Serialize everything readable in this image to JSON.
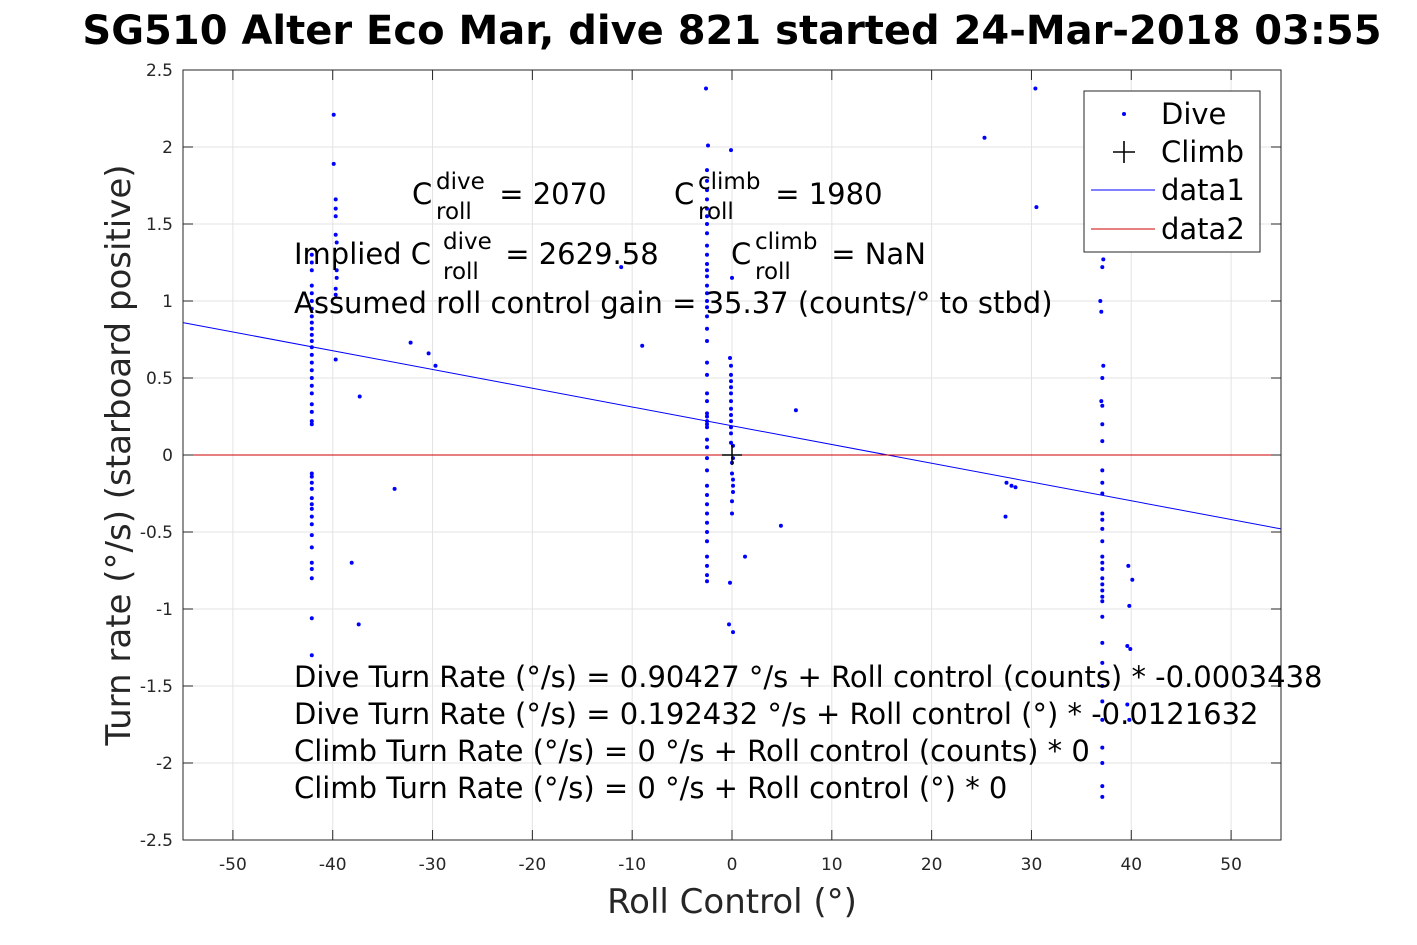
{
  "chart_data": {
    "type": "scatter",
    "title": "SG510 Alter Eco Mar, dive 821 started 24-Mar-2018 03:55",
    "xlabel": "Roll Control (°)",
    "ylabel": "Turn rate (°/s) (starboard positive)",
    "xlim": [
      -55,
      55
    ],
    "ylim": [
      -2.5,
      2.5
    ],
    "xticks": [
      -50,
      -40,
      -30,
      -20,
      -10,
      0,
      10,
      20,
      30,
      40,
      50
    ],
    "yticks": [
      -2.5,
      -2,
      -1.5,
      -1,
      -0.5,
      0,
      0.5,
      1,
      1.5,
      2,
      2.5
    ],
    "xtick_labels": [
      "-50",
      "-40",
      "-30",
      "-20",
      "-10",
      "0",
      "10",
      "20",
      "30",
      "40",
      "50"
    ],
    "ytick_labels": [
      "-2.5",
      "-2",
      "-1.5",
      "-1",
      "-0.5",
      "0",
      "0.5",
      "1",
      "1.5",
      "2",
      "2.5"
    ],
    "grid": true,
    "legend_position": "top-right",
    "colors": {
      "dive": "#0000ff",
      "climb": "#000000",
      "data1": "#0000ff",
      "data2": "#cc0000"
    },
    "series": [
      {
        "name": "Dive",
        "marker": "dot",
        "points": [
          [
            -42.1,
            1.3
          ],
          [
            -42.1,
            1.25
          ],
          [
            -42.1,
            1.2
          ],
          [
            -42.1,
            1.1
          ],
          [
            -42.1,
            1.05
          ],
          [
            -42.1,
            1.0
          ],
          [
            -42.1,
            0.95
          ],
          [
            -42.1,
            0.9
          ],
          [
            -42.1,
            0.86
          ],
          [
            -42.1,
            0.82
          ],
          [
            -42.1,
            0.78
          ],
          [
            -42.1,
            0.74
          ],
          [
            -42.1,
            0.7
          ],
          [
            -42.1,
            0.65
          ],
          [
            -42.1,
            0.6
          ],
          [
            -42.1,
            0.55
          ],
          [
            -42.1,
            0.5
          ],
          [
            -42.1,
            0.45
          ],
          [
            -42.1,
            0.4
          ],
          [
            -42.1,
            0.33
          ],
          [
            -42.1,
            0.28
          ],
          [
            -42.1,
            0.22
          ],
          [
            -42.1,
            0.2
          ],
          [
            -42.1,
            -0.12
          ],
          [
            -42.1,
            -0.14
          ],
          [
            -42.1,
            -0.18
          ],
          [
            -42.1,
            -0.22
          ],
          [
            -42.1,
            -0.28
          ],
          [
            -42.1,
            -0.32
          ],
          [
            -42.1,
            -0.35
          ],
          [
            -42.1,
            -0.4
          ],
          [
            -42.1,
            -0.45
          ],
          [
            -42.1,
            -0.52
          ],
          [
            -42.1,
            -0.6
          ],
          [
            -42.1,
            -0.7
          ],
          [
            -42.1,
            -0.74
          ],
          [
            -42.1,
            -0.8
          ],
          [
            -42.1,
            -1.06
          ],
          [
            -42.1,
            -1.3
          ],
          [
            -39.9,
            2.21
          ],
          [
            -39.9,
            1.89
          ],
          [
            -39.7,
            1.66
          ],
          [
            -39.7,
            1.6
          ],
          [
            -39.7,
            1.55
          ],
          [
            -39.7,
            1.43
          ],
          [
            -39.6,
            1.38
          ],
          [
            -39.6,
            1.2
          ],
          [
            -39.6,
            1.15
          ],
          [
            -39.7,
            1.08
          ],
          [
            -39.7,
            1.04
          ],
          [
            -39.7,
            0.62
          ],
          [
            -37.3,
            0.38
          ],
          [
            -38.1,
            -0.7
          ],
          [
            -37.4,
            -1.1
          ],
          [
            -33.8,
            -0.22
          ],
          [
            -32.2,
            0.73
          ],
          [
            -30.4,
            0.66
          ],
          [
            -29.7,
            0.58
          ],
          [
            -11.1,
            1.22
          ],
          [
            -9.0,
            0.71
          ],
          [
            -2.6,
            2.38
          ],
          [
            -2.4,
            2.01
          ],
          [
            -2.5,
            1.85
          ],
          [
            -2.5,
            1.78
          ],
          [
            -2.5,
            1.72
          ],
          [
            -2.5,
            1.66
          ],
          [
            -2.5,
            1.6
          ],
          [
            -2.5,
            1.55
          ],
          [
            -2.5,
            1.5
          ],
          [
            -2.5,
            1.44
          ],
          [
            -2.5,
            1.36
          ],
          [
            -2.5,
            1.3
          ],
          [
            -2.5,
            1.24
          ],
          [
            -2.5,
            1.2
          ],
          [
            -2.5,
            1.16
          ],
          [
            -2.5,
            1.1
          ],
          [
            -2.5,
            1.05
          ],
          [
            -2.5,
            1.0
          ],
          [
            -2.5,
            0.96
          ],
          [
            -2.5,
            0.9
          ],
          [
            -2.5,
            0.82
          ],
          [
            -2.5,
            0.74
          ],
          [
            -2.5,
            0.6
          ],
          [
            -2.5,
            0.52
          ],
          [
            -2.5,
            0.4
          ],
          [
            -2.5,
            0.35
          ],
          [
            -2.5,
            0.27
          ],
          [
            -2.5,
            0.25
          ],
          [
            -2.5,
            0.22
          ],
          [
            -2.5,
            0.2
          ],
          [
            -2.5,
            0.18
          ],
          [
            -2.5,
            0.1
          ],
          [
            -2.5,
            0.05
          ],
          [
            -2.5,
            -0.02
          ],
          [
            -2.5,
            -0.1
          ],
          [
            -2.5,
            -0.2
          ],
          [
            -2.5,
            -0.26
          ],
          [
            -2.5,
            -0.32
          ],
          [
            -2.5,
            -0.38
          ],
          [
            -2.5,
            -0.44
          ],
          [
            -2.5,
            -0.5
          ],
          [
            -2.5,
            -0.56
          ],
          [
            -2.5,
            -0.66
          ],
          [
            -2.5,
            -0.72
          ],
          [
            -2.5,
            -0.78
          ],
          [
            -2.5,
            -0.82
          ],
          [
            -0.1,
            1.98
          ],
          [
            0,
            1.15
          ],
          [
            -0.2,
            0.63
          ],
          [
            -0.1,
            0.58
          ],
          [
            -0.1,
            0.52
          ],
          [
            -0.1,
            0.48
          ],
          [
            -0.1,
            0.44
          ],
          [
            -0.1,
            0.4
          ],
          [
            -0.1,
            0.35
          ],
          [
            -0.1,
            0.3
          ],
          [
            -0.1,
            0.26
          ],
          [
            -0.1,
            0.22
          ],
          [
            -0.1,
            0.18
          ],
          [
            -0.1,
            0.14
          ],
          [
            -0.1,
            0.08
          ],
          [
            0.1,
            0.06
          ],
          [
            0.1,
            -0.02
          ],
          [
            0,
            -0.05
          ],
          [
            0,
            -0.12
          ],
          [
            0.1,
            -0.16
          ],
          [
            0.1,
            -0.2
          ],
          [
            0.1,
            -0.24
          ],
          [
            0,
            -0.3
          ],
          [
            0,
            -0.38
          ],
          [
            -0.2,
            -0.83
          ],
          [
            -0.3,
            -1.1
          ],
          [
            0.1,
            -1.15
          ],
          [
            1.3,
            -0.66
          ],
          [
            4.9,
            -0.46
          ],
          [
            6.4,
            0.29
          ],
          [
            25.3,
            2.06
          ],
          [
            30.4,
            2.38
          ],
          [
            30.5,
            1.61
          ],
          [
            27.5,
            -0.18
          ],
          [
            28.0,
            -0.2
          ],
          [
            28.4,
            -0.21
          ],
          [
            27.4,
            -0.4
          ],
          [
            37.2,
            1.27
          ],
          [
            37.1,
            1.22
          ],
          [
            36.9,
            1.0
          ],
          [
            37.0,
            0.93
          ],
          [
            37.2,
            0.58
          ],
          [
            37.1,
            0.5
          ],
          [
            37.0,
            0.35
          ],
          [
            37.1,
            0.32
          ],
          [
            37.1,
            0.2
          ],
          [
            37.1,
            0.09
          ],
          [
            37.1,
            -0.1
          ],
          [
            37.1,
            -0.18
          ],
          [
            37.1,
            -0.25
          ],
          [
            37.1,
            -0.38
          ],
          [
            37.1,
            -0.42
          ],
          [
            37.1,
            -0.48
          ],
          [
            37.1,
            -0.56
          ],
          [
            37.1,
            -0.66
          ],
          [
            37.1,
            -0.7
          ],
          [
            37.1,
            -0.74
          ],
          [
            37.1,
            -0.8
          ],
          [
            37.1,
            -0.84
          ],
          [
            37.1,
            -0.88
          ],
          [
            37.1,
            -0.92
          ],
          [
            37.1,
            -0.95
          ],
          [
            37.1,
            -1.05
          ],
          [
            37.1,
            -1.22
          ],
          [
            37.1,
            -1.35
          ],
          [
            37.1,
            -1.5
          ],
          [
            37.1,
            -1.6
          ],
          [
            37.1,
            -1.72
          ],
          [
            37.1,
            -1.9
          ],
          [
            37.1,
            -2.0
          ],
          [
            37.1,
            -2.15
          ],
          [
            37.1,
            -2.22
          ],
          [
            39.7,
            -0.72
          ],
          [
            40.1,
            -0.81
          ],
          [
            39.8,
            -0.98
          ],
          [
            39.6,
            -1.24
          ],
          [
            39.9,
            -1.26
          ],
          [
            39.6,
            -1.62
          ],
          [
            39.8,
            -1.72
          ]
        ]
      },
      {
        "name": "Climb",
        "marker": "plus",
        "points": [
          [
            0,
            0
          ]
        ]
      },
      {
        "name": "data1",
        "style": "line",
        "points": [
          [
            -55,
            0.86
          ],
          [
            55,
            -0.48
          ]
        ]
      },
      {
        "name": "data2",
        "style": "line",
        "points": [
          [
            -55,
            0
          ],
          [
            55,
            0
          ]
        ]
      }
    ],
    "annotations": {
      "c_dive": {
        "base": "C",
        "sup": "dive",
        "sub": "roll",
        "rest": " = 2070"
      },
      "c_climb": {
        "base": "C",
        "sup": "climb",
        "sub": "roll",
        "rest": " = 1980"
      },
      "implied_prefix": "Implied C",
      "implied_dive": {
        "sup": "dive",
        "sub": "roll",
        "rest": " = 2629.58"
      },
      "implied_climb": {
        "base": "C",
        "sup": "climb",
        "sub": "roll",
        "rest": " = NaN"
      },
      "gain": "Assumed roll control gain = 35.37 (counts/° to stbd)",
      "eq1": "Dive Turn Rate (°/s) = 0.90427 °/s + Roll control (counts) * -0.0003438",
      "eq2": "Dive Turn Rate (°/s) = 0.192432 °/s + Roll control (°) * -0.0121632",
      "eq3": "Climb Turn Rate (°/s) = 0 °/s + Roll control (counts) * 0",
      "eq4": "Climb Turn Rate (°/s) = 0 °/s + Roll control (°) * 0"
    }
  }
}
